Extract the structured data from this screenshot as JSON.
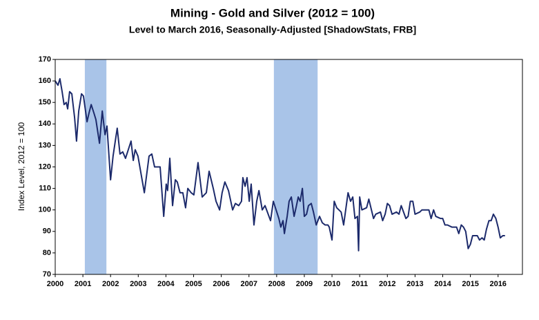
{
  "chart_data": {
    "type": "line",
    "title": "Mining - Gold and Silver (2012 = 100)",
    "subtitle": "Level to March 2016, Seasonally-Adjusted [ShadowStats, FRB]",
    "y_label": "Index Level, 2012 = 100",
    "xlim": [
      2000,
      2016.88
    ],
    "ylim": [
      70,
      170
    ],
    "xticks": [
      2000,
      2001,
      2002,
      2003,
      2004,
      2005,
      2006,
      2007,
      2008,
      2009,
      2010,
      2011,
      2012,
      2013,
      2014,
      2015,
      2016
    ],
    "yticks": [
      70,
      80,
      90,
      100,
      110,
      120,
      130,
      140,
      150,
      160,
      170
    ],
    "grid": false,
    "shaded_color": "#a9c4e8",
    "shaded_periods": [
      [
        2001.07,
        2001.85
      ],
      [
        2007.9,
        2009.48
      ]
    ],
    "x": [
      2000,
      2000.1,
      2000.17,
      2000.25,
      2000.32,
      2000.4,
      2000.45,
      2000.52,
      2000.6,
      2000.7,
      2000.77,
      2000.85,
      2000.95,
      2001.02,
      2001.15,
      2001.22,
      2001.3,
      2001.4,
      2001.47,
      2001.6,
      2001.7,
      2001.8,
      2001.87,
      2002,
      2002.09,
      2002.17,
      2002.24,
      2002.34,
      2002.44,
      2002.54,
      2002.64,
      2002.74,
      2002.82,
      2002.89,
      2002.99,
      2003.22,
      2003.39,
      2003.49,
      2003.59,
      2003.79,
      2003.92,
      2004.01,
      2004.06,
      2004.14,
      2004.24,
      2004.34,
      2004.41,
      2004.51,
      2004.61,
      2004.71,
      2004.79,
      2004.91,
      2005.01,
      2005.16,
      2005.31,
      2005.46,
      2005.56,
      2005.71,
      2005.81,
      2005.94,
      2006.03,
      2006.13,
      2006.26,
      2006.41,
      2006.51,
      2006.63,
      2006.73,
      2006.78,
      2006.86,
      2006.93,
      2007.01,
      2007.08,
      2007.18,
      2007.28,
      2007.36,
      2007.48,
      2007.58,
      2007.78,
      2007.88,
      2007.98,
      2008.08,
      2008.15,
      2008.23,
      2008.28,
      2008.38,
      2008.45,
      2008.53,
      2008.63,
      2008.7,
      2008.78,
      2008.85,
      2008.93,
      2009,
      2009.08,
      2009.15,
      2009.25,
      2009.33,
      2009.43,
      2009.55,
      2009.65,
      2009.75,
      2009.85,
      2009.9,
      2010,
      2010.08,
      2010.17,
      2010.33,
      2010.42,
      2010.58,
      2010.67,
      2010.75,
      2010.83,
      2010.92,
      2010.96,
      2011,
      2011.08,
      2011.25,
      2011.33,
      2011.5,
      2011.58,
      2011.75,
      2011.83,
      2011.92,
      2012,
      2012.08,
      2012.17,
      2012.33,
      2012.42,
      2012.5,
      2012.67,
      2012.75,
      2012.83,
      2012.92,
      2013,
      2013.17,
      2013.25,
      2013.5,
      2013.58,
      2013.67,
      2013.75,
      2013.92,
      2014,
      2014.08,
      2014.17,
      2014.33,
      2014.5,
      2014.58,
      2014.67,
      2014.75,
      2014.83,
      2014.92,
      2015,
      2015.08,
      2015.25,
      2015.33,
      2015.42,
      2015.5,
      2015.58,
      2015.67,
      2015.75,
      2015.83,
      2015.92,
      2016,
      2016.08,
      2016.17,
      2016.25
    ],
    "series": [
      {
        "name": "Mining - Gold and Silver",
        "color": "#1c2a6b",
        "values": [
          160,
          158,
          161,
          155,
          149,
          150,
          147,
          155,
          154,
          143,
          132,
          146,
          154,
          153,
          141,
          145,
          149,
          145,
          142,
          131,
          146,
          135,
          139,
          114,
          125,
          132,
          138,
          126,
          127,
          124,
          128,
          132,
          123,
          128,
          125,
          108,
          125,
          126,
          120,
          120,
          97,
          112,
          109,
          124,
          102,
          114,
          113,
          108,
          108,
          101,
          110,
          108,
          107,
          122,
          106,
          108,
          118,
          110,
          104,
          100,
          108,
          113,
          109,
          100,
          103,
          102,
          104,
          115,
          111,
          115,
          104,
          112,
          93,
          104,
          109,
          100,
          102,
          95,
          104,
          100,
          96,
          92,
          95,
          89,
          97,
          104,
          106,
          97,
          101,
          106,
          104,
          110,
          97,
          98,
          102,
          103,
          99,
          93,
          97,
          94,
          93,
          93,
          92,
          86,
          104,
          101,
          99,
          93,
          108,
          104,
          106,
          96,
          97,
          81,
          106,
          100,
          101,
          105,
          96,
          98,
          99,
          95,
          98,
          103,
          102,
          98,
          99,
          98,
          102,
          96,
          97,
          104,
          104,
          98,
          99,
          100,
          100,
          96,
          100,
          97,
          96,
          96,
          93,
          93,
          92,
          92,
          89,
          93,
          92,
          90,
          82,
          84,
          88,
          88,
          86,
          87,
          86,
          91,
          95,
          95,
          98,
          96,
          92,
          87,
          88,
          88
        ]
      }
    ]
  }
}
